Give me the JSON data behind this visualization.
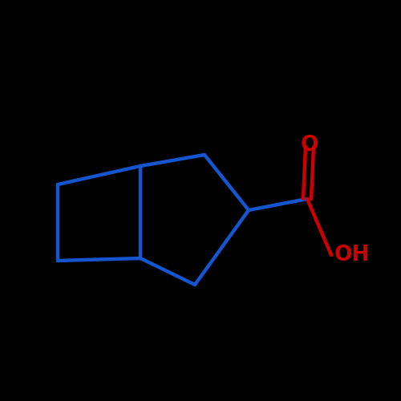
{
  "background_color": "#000000",
  "bond_color": "#1555d0",
  "atom_color_O": "#cc0000",
  "line_width": 3.2,
  "font_size_O": 19,
  "font_size_OH": 19,
  "figsize": [
    5.0,
    5.0
  ],
  "dpi": 100
}
